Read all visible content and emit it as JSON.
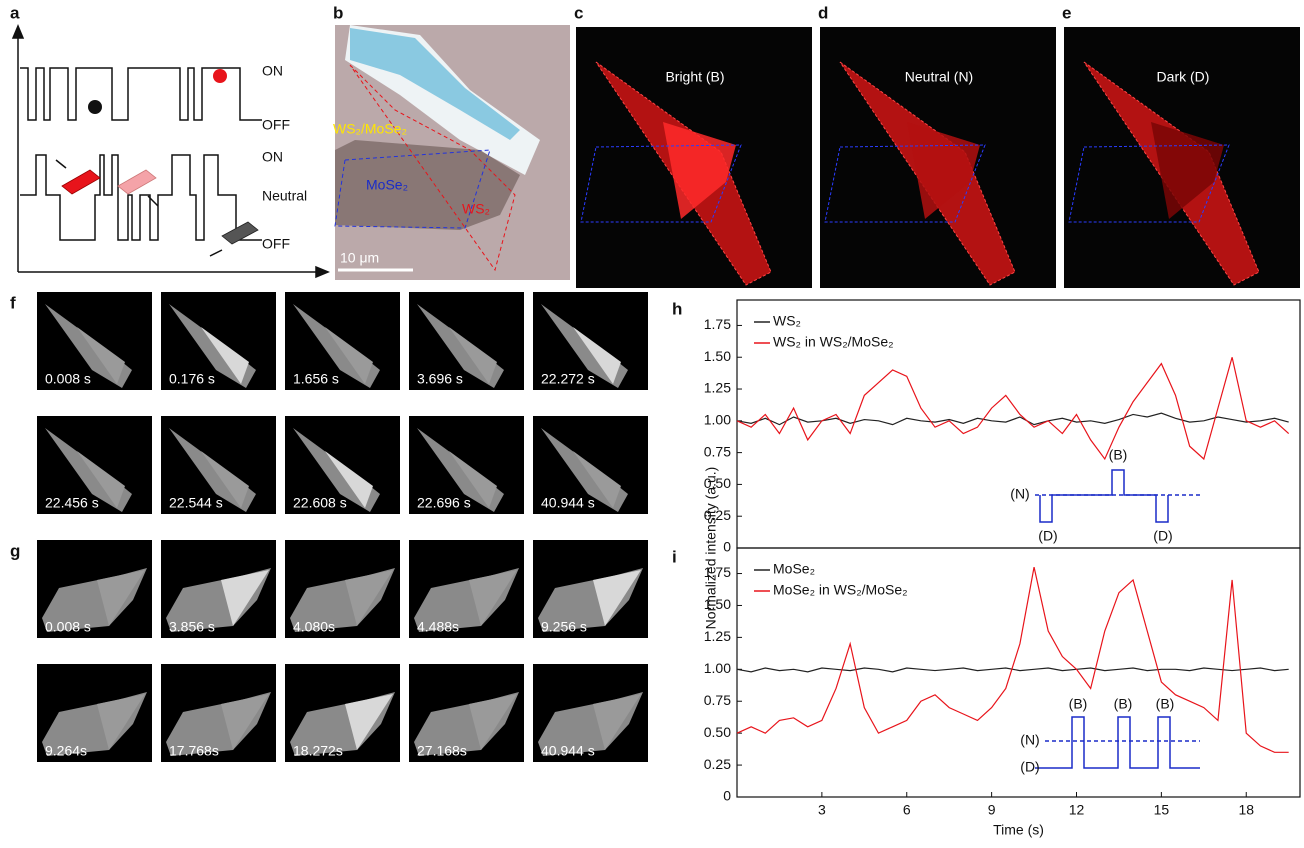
{
  "panels": {
    "a": {
      "label": "a",
      "top_on": "ON",
      "top_off": "OFF",
      "bottom_on": "ON",
      "bottom_neutral": "Neutral",
      "bottom_off": "OFF"
    },
    "b": {
      "label": "b",
      "heterostructure": "WS₂/MoSe₂",
      "mose2": "MoSe₂",
      "ws2": "WS₂",
      "scale_bar": "10 μm"
    },
    "c": {
      "label": "c",
      "title": "Bright (B)"
    },
    "d": {
      "label": "d",
      "title": "Neutral (N)"
    },
    "e": {
      "label": "e",
      "title": "Dark (D)"
    },
    "f": {
      "label": "f",
      "times": [
        "0.008 s",
        "0.176 s",
        "1.656 s",
        "3.696 s",
        "22.272 s",
        "22.456 s",
        "22.544 s",
        "22.608 s",
        "22.696 s",
        "40.944 s"
      ]
    },
    "g": {
      "label": "g",
      "times": [
        "0.008 s",
        "3.856 s",
        "4.080s",
        "4.488s",
        "9.256 s",
        "9.264s",
        "17.768s",
        "18.272s",
        "27.168s",
        "40.944 s"
      ]
    }
  },
  "y_axis_label": "Normalized intensity (a.u.)",
  "chart_data": [
    {
      "type": "line",
      "panel_label": "h",
      "x": [
        0,
        0.5,
        1,
        1.5,
        2,
        2.5,
        3,
        3.5,
        4,
        4.5,
        5,
        5.5,
        6,
        6.5,
        7,
        7.5,
        8,
        8.5,
        9,
        9.5,
        10,
        10.5,
        11,
        11.5,
        12,
        12.5,
        13,
        13.5,
        14,
        14.5,
        15,
        15.5,
        16,
        16.5,
        17,
        17.5,
        18,
        18.5,
        19,
        19.5
      ],
      "xlim": [
        0,
        19.9
      ],
      "ylim": [
        0,
        1.95
      ],
      "yticks": [
        0,
        0.25,
        {
          "value": 0.5,
          "label": "0.50"
        },
        0.75,
        {
          "value": 1,
          "label": "1.00"
        },
        1.25,
        {
          "value": 1.5,
          "label": "1.50"
        },
        1.75
      ],
      "series": [
        {
          "name": "WS₂",
          "color": "#222222",
          "values": [
            1.0,
            0.98,
            1.02,
            0.97,
            1.03,
            0.99,
            1.0,
            1.02,
            0.98,
            1.01,
            1.0,
            0.97,
            1.02,
            1.0,
            0.99,
            1.01,
            0.98,
            1.02,
            1.0,
            0.99,
            1.03,
            0.97,
            1.0,
            1.02,
            0.99,
            1.0,
            0.98,
            1.01,
            1.05,
            1.03,
            1.06,
            1.02,
            0.99,
            1.0,
            1.03,
            1.01,
            0.99,
            1.0,
            1.02,
            0.99
          ]
        },
        {
          "name": "WS₂ in WS₂/MoSe₂",
          "color": "#e8141b",
          "values": [
            1.0,
            0.95,
            1.05,
            0.9,
            1.1,
            0.85,
            1.0,
            1.05,
            0.9,
            1.2,
            1.3,
            1.4,
            1.35,
            1.1,
            0.95,
            1.0,
            0.9,
            0.95,
            1.1,
            1.2,
            1.05,
            0.95,
            1.0,
            0.9,
            1.05,
            0.85,
            0.7,
            0.95,
            1.15,
            1.3,
            1.45,
            1.2,
            0.8,
            0.7,
            1.1,
            1.5,
            1.0,
            0.95,
            1.0,
            0.9
          ]
        }
      ],
      "annotations": [
        "(N)",
        "(B)",
        "(D)",
        "(D)"
      ]
    },
    {
      "type": "line",
      "panel_label": "i",
      "x": [
        0,
        0.5,
        1,
        1.5,
        2,
        2.5,
        3,
        3.5,
        4,
        4.5,
        5,
        5.5,
        6,
        6.5,
        7,
        7.5,
        8,
        8.5,
        9,
        9.5,
        10,
        10.5,
        11,
        11.5,
        12,
        12.5,
        13,
        13.5,
        14,
        14.5,
        15,
        15.5,
        16,
        16.5,
        17,
        17.5,
        18,
        18.5,
        19,
        19.5
      ],
      "xlim": [
        0,
        19.9
      ],
      "ylim": [
        0,
        1.95
      ],
      "xticks": [
        3,
        6,
        9,
        12,
        15,
        18
      ],
      "x_label": "Time (s)",
      "yticks": [
        0,
        0.25,
        {
          "value": 0.5,
          "label": "0.50"
        },
        0.75,
        {
          "value": 1,
          "label": "1.00"
        },
        1.25,
        {
          "value": 1.5,
          "label": "1.50"
        },
        1.75
      ],
      "series": [
        {
          "name": "MoSe₂",
          "color": "#222222",
          "values": [
            1.0,
            0.98,
            1.01,
            0.99,
            1.0,
            0.98,
            1.01,
            1.0,
            0.99,
            1.01,
            1.0,
            0.98,
            1.01,
            1.0,
            0.99,
            1.0,
            1.01,
            0.99,
            1.0,
            1.01,
            0.99,
            1.0,
            1.01,
            0.99,
            1.0,
            1.01,
            0.99,
            1.0,
            1.01,
            0.99,
            1.0,
            1.0,
            0.99,
            1.01,
            1.0,
            0.99,
            1.0,
            1.01,
            0.99,
            1.0
          ]
        },
        {
          "name": "MoSe₂ in WS₂/MoSe₂",
          "color": "#e8141b",
          "values": [
            0.5,
            0.55,
            0.5,
            0.6,
            0.62,
            0.55,
            0.6,
            0.85,
            1.2,
            0.7,
            0.5,
            0.55,
            0.6,
            0.75,
            0.8,
            0.7,
            0.65,
            0.6,
            0.7,
            0.85,
            1.2,
            1.8,
            1.3,
            1.1,
            1.0,
            0.85,
            1.3,
            1.6,
            1.7,
            1.3,
            0.9,
            0.8,
            0.75,
            0.7,
            0.6,
            1.7,
            0.5,
            0.4,
            0.35,
            0.35
          ]
        }
      ],
      "annotations": [
        "(B)",
        "(B)",
        "(B)",
        "(N)",
        "(D)"
      ]
    }
  ]
}
